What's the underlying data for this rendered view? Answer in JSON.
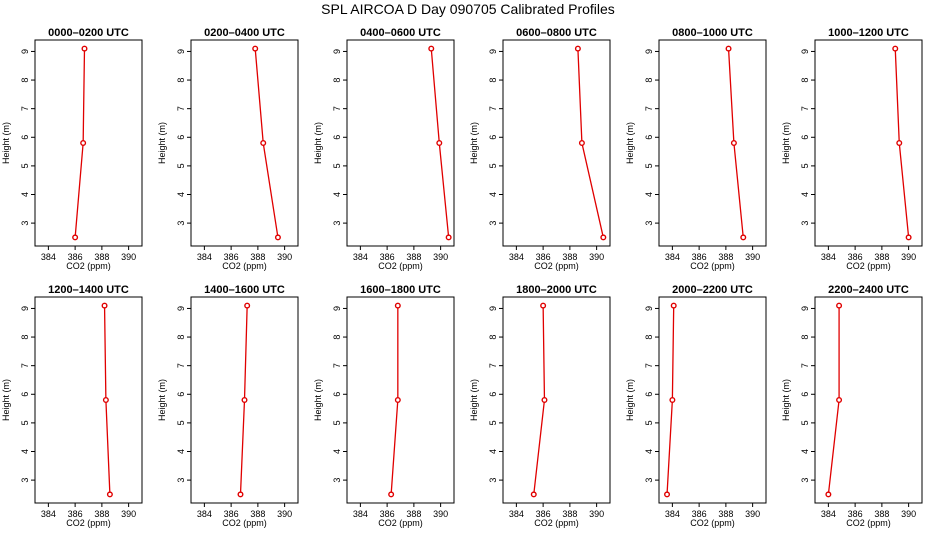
{
  "chart_data": {
    "type": "line",
    "title": "SPL AIRCOA D  Day 090705  Calibrated Profiles",
    "xlabel": "CO2 (ppm)",
    "ylabel": "Height (m)",
    "xlim": [
      383,
      391
    ],
    "ylim": [
      2.2,
      9.4
    ],
    "xticks": [
      384,
      386,
      388,
      390
    ],
    "yticks": [
      3,
      4,
      5,
      6,
      7,
      8,
      9
    ],
    "heights": [
      2.5,
      5.8,
      9.1
    ],
    "panels": [
      {
        "title": "0000–0200 UTC",
        "co2": [
          386.0,
          386.6,
          386.7
        ]
      },
      {
        "title": "0200–0400 UTC",
        "co2": [
          389.5,
          388.4,
          387.8
        ]
      },
      {
        "title": "0400–0600 UTC",
        "co2": [
          390.6,
          389.9,
          389.3
        ]
      },
      {
        "title": "0600–0800 UTC",
        "co2": [
          390.5,
          388.9,
          388.6
        ]
      },
      {
        "title": "0800–1000 UTC",
        "co2": [
          389.3,
          388.6,
          388.2
        ]
      },
      {
        "title": "1000–1200 UTC",
        "co2": [
          390.0,
          389.3,
          389.0
        ]
      },
      {
        "title": "1200–1400 UTC",
        "co2": [
          388.6,
          388.3,
          388.2
        ]
      },
      {
        "title": "1400–1600 UTC",
        "co2": [
          386.7,
          387.0,
          387.2
        ]
      },
      {
        "title": "1600–1800 UTC",
        "co2": [
          386.3,
          386.8,
          386.8
        ]
      },
      {
        "title": "1800–2000 UTC",
        "co2": [
          385.3,
          386.1,
          386.0
        ]
      },
      {
        "title": "2000–2200 UTC",
        "co2": [
          383.6,
          384.0,
          384.1
        ]
      },
      {
        "title": "2200–2400 UTC",
        "co2": [
          384.0,
          384.8,
          384.8
        ]
      }
    ]
  }
}
